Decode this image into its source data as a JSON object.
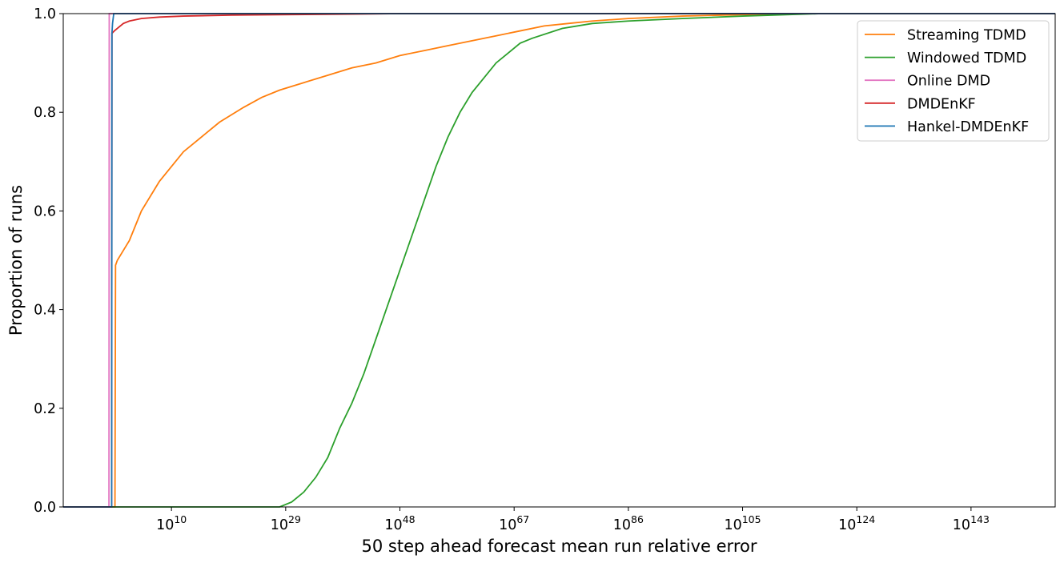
{
  "chart_data": {
    "type": "line",
    "title": "",
    "xlabel": "50 step ahead forecast mean run relative error",
    "ylabel": "Proportion of runs",
    "xscale": "log",
    "xlim_log10": [
      -8,
      157
    ],
    "ylim": [
      0,
      1
    ],
    "grid": false,
    "legend_position": "top-right",
    "x_ticks": [
      {
        "base": "10",
        "exp": "10",
        "log10": 10
      },
      {
        "base": "10",
        "exp": "29",
        "log10": 29
      },
      {
        "base": "10",
        "exp": "48",
        "log10": 48
      },
      {
        "base": "10",
        "exp": "67",
        "log10": 67
      },
      {
        "base": "10",
        "exp": "86",
        "log10": 86
      },
      {
        "base": "10",
        "exp": "105",
        "log10": 105
      },
      {
        "base": "10",
        "exp": "124",
        "log10": 124
      },
      {
        "base": "10",
        "exp": "143",
        "log10": 143
      }
    ],
    "y_ticks": [
      "0.0",
      "0.2",
      "0.4",
      "0.6",
      "0.8",
      "1.0"
    ],
    "series": [
      {
        "name": "Streaming TDMD",
        "color": "#ff7f0e",
        "points_log10x_y": [
          [
            -8,
            0
          ],
          [
            0.6,
            0
          ],
          [
            0.7,
            0.49
          ],
          [
            1,
            0.5
          ],
          [
            2,
            0.52
          ],
          [
            3,
            0.54
          ],
          [
            4,
            0.57
          ],
          [
            5,
            0.6
          ],
          [
            6,
            0.62
          ],
          [
            7,
            0.64
          ],
          [
            8,
            0.66
          ],
          [
            10,
            0.69
          ],
          [
            12,
            0.72
          ],
          [
            14,
            0.74
          ],
          [
            16,
            0.76
          ],
          [
            18,
            0.78
          ],
          [
            20,
            0.795
          ],
          [
            22,
            0.81
          ],
          [
            25,
            0.83
          ],
          [
            28,
            0.845
          ],
          [
            32,
            0.86
          ],
          [
            36,
            0.875
          ],
          [
            40,
            0.89
          ],
          [
            44,
            0.9
          ],
          [
            48,
            0.915
          ],
          [
            52,
            0.925
          ],
          [
            56,
            0.935
          ],
          [
            60,
            0.945
          ],
          [
            64,
            0.955
          ],
          [
            68,
            0.965
          ],
          [
            72,
            0.975
          ],
          [
            76,
            0.98
          ],
          [
            80,
            0.985
          ],
          [
            86,
            0.99
          ],
          [
            95,
            0.995
          ],
          [
            105,
            0.998
          ],
          [
            115,
            1.0
          ],
          [
            157,
            1.0
          ]
        ]
      },
      {
        "name": "Windowed TDMD",
        "color": "#2ca02c",
        "points_log10x_y": [
          [
            -8,
            0
          ],
          [
            28,
            0
          ],
          [
            30,
            0.01
          ],
          [
            32,
            0.03
          ],
          [
            34,
            0.06
          ],
          [
            36,
            0.1
          ],
          [
            38,
            0.16
          ],
          [
            40,
            0.21
          ],
          [
            42,
            0.27
          ],
          [
            44,
            0.34
          ],
          [
            46,
            0.41
          ],
          [
            48,
            0.48
          ],
          [
            50,
            0.55
          ],
          [
            52,
            0.62
          ],
          [
            54,
            0.69
          ],
          [
            56,
            0.75
          ],
          [
            58,
            0.8
          ],
          [
            60,
            0.84
          ],
          [
            62,
            0.87
          ],
          [
            64,
            0.9
          ],
          [
            66,
            0.92
          ],
          [
            68,
            0.94
          ],
          [
            70,
            0.95
          ],
          [
            75,
            0.97
          ],
          [
            80,
            0.98
          ],
          [
            86,
            0.985
          ],
          [
            95,
            0.99
          ],
          [
            105,
            0.995
          ],
          [
            118,
            1.0
          ],
          [
            157,
            1.0
          ]
        ]
      },
      {
        "name": "Online DMD",
        "color": "#e377c2",
        "points_log10x_y": [
          [
            -8,
            0
          ],
          [
            -0.4,
            0
          ],
          [
            -0.35,
            1
          ],
          [
            157,
            1
          ]
        ]
      },
      {
        "name": "DMDEnKF",
        "color": "#d62728",
        "points_log10x_y": [
          [
            -8,
            0
          ],
          [
            0.05,
            0
          ],
          [
            0.1,
            0.96
          ],
          [
            0.5,
            0.965
          ],
          [
            1,
            0.97
          ],
          [
            2,
            0.98
          ],
          [
            3,
            0.985
          ],
          [
            5,
            0.99
          ],
          [
            8,
            0.993
          ],
          [
            12,
            0.995
          ],
          [
            20,
            0.997
          ],
          [
            30,
            0.998
          ],
          [
            40,
            0.999
          ],
          [
            48,
            1.0
          ],
          [
            157,
            1.0
          ]
        ]
      },
      {
        "name": "Hankel-DMDEnKF",
        "color": "#1f77b4",
        "points_log10x_y": [
          [
            -8,
            0
          ],
          [
            0.05,
            0
          ],
          [
            0.1,
            0.96
          ],
          [
            0.2,
            0.98
          ],
          [
            0.3,
            0.99
          ],
          [
            0.4,
            1.0
          ],
          [
            157,
            1.0
          ]
        ]
      }
    ],
    "legend_order": [
      0,
      1,
      2,
      3,
      4
    ]
  }
}
